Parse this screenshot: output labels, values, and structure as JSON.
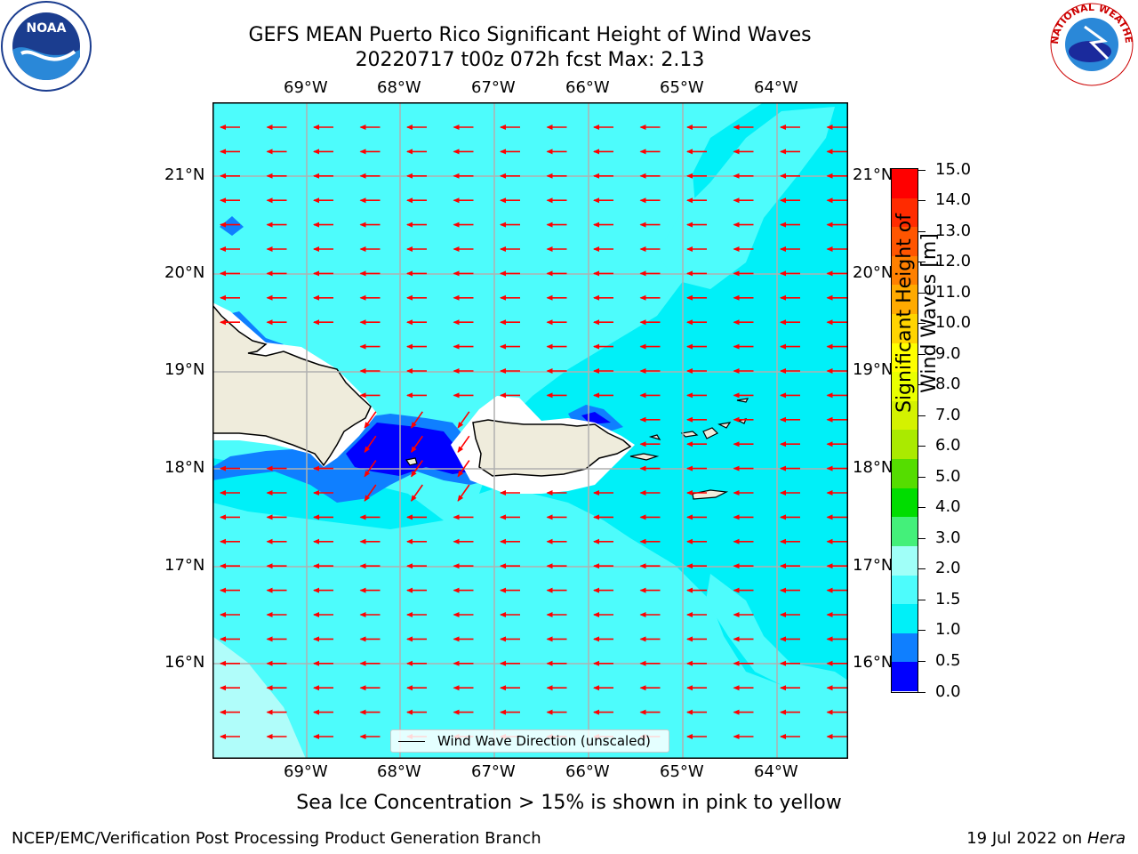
{
  "header": {
    "title": "GEFS MEAN Puerto Rico Significant Height of Wind Waves",
    "subtitle": "20220717 t00z 072h fcst   Max: 2.13"
  },
  "logos": {
    "noaa_text": "NOAA",
    "nws_text": "NATIONAL WEATHER SERVICE"
  },
  "map": {
    "lon_labels": [
      "69°W",
      "68°W",
      "67°W",
      "66°W",
      "65°W",
      "64°W"
    ],
    "lat_labels": [
      "21°N",
      "20°N",
      "19°N",
      "18°N",
      "17°N",
      "16°N"
    ],
    "legend_label": "Wind Wave Direction (unscaled)",
    "arrow_color": "#ff0000",
    "sea_colors": {
      "dark": "#0000ff",
      "mid": "#0f7fff",
      "cyan": "#00f0f8",
      "light": "#4dfcfc",
      "pale": "#b0fdfa"
    },
    "land_color": "#efecdc"
  },
  "colorbar": {
    "label": "Significant Height of Wind Waves [m]",
    "ticks": [
      "15.0",
      "14.0",
      "13.0",
      "12.0",
      "11.0",
      "10.0",
      "9.0",
      "8.0",
      "7.0",
      "6.0",
      "5.0",
      "4.0",
      "3.0",
      "2.0",
      "1.5",
      "1.0",
      "0.5",
      "0.0"
    ],
    "colors_top_to_bottom": [
      "#ff0000",
      "#ff2b00",
      "#ff5500",
      "#ff8000",
      "#ffaa00",
      "#ffd400",
      "#ffff00",
      "#eaff00",
      "#d4f200",
      "#aaea00",
      "#55dd00",
      "#00dd00",
      "#44f07a",
      "#a0fff8",
      "#4dfcfc",
      "#00f0f8",
      "#0f7fff",
      "#0000ff"
    ]
  },
  "footer": {
    "note": "Sea Ice Concentration > 15% is shown in pink to yellow",
    "credit": "NCEP/EMC/Verification Post Processing Product Generation Branch",
    "date": "19 Jul 2022 on",
    "host": "Hera"
  }
}
